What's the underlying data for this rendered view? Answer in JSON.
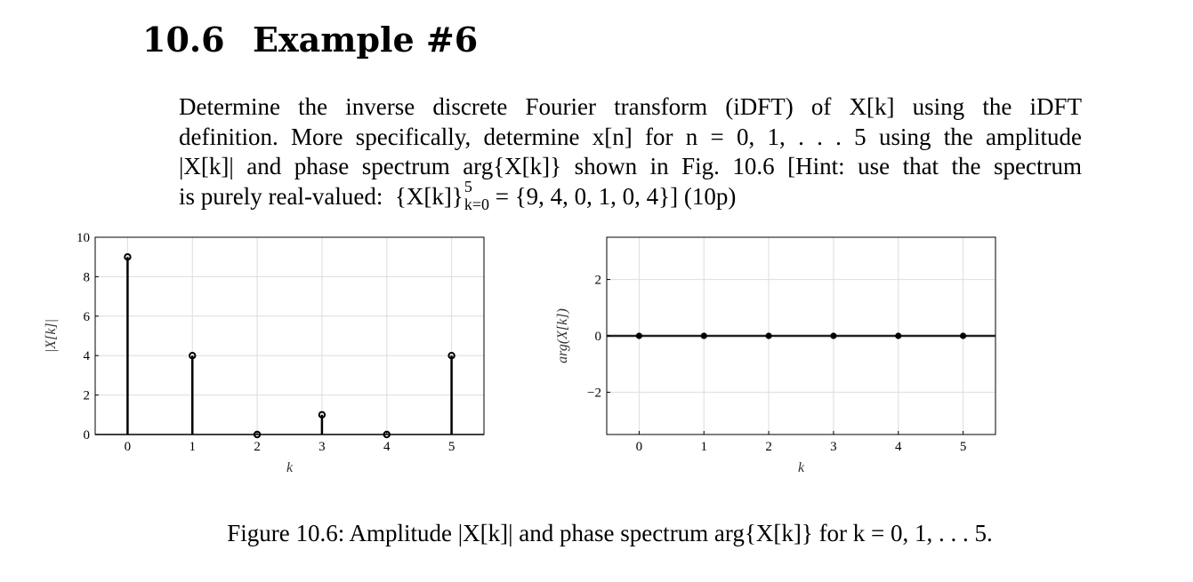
{
  "section": {
    "number": "10.6",
    "title": "Example #6"
  },
  "paragraph": {
    "line1": "Determine the inverse discrete Fourier transform (iDFT) of X[k] using the iDFT",
    "line2": "definition.  More specifically, determine x[n] for n = 0, 1, . . . 5 using the amplitude",
    "line3": "|X[k]| and phase spectrum arg{X[k]} shown in Fig. 10.6 [Hint: use that the spectrum",
    "line4_pre": "is purely real-valued:  {X[k]}",
    "line4_sup": "5",
    "line4_sub": "k=0",
    "line4_post": " = {9, 4, 0, 1, 0, 4}] (10p)"
  },
  "caption": "Figure 10.6:  Amplitude |X[k]| and phase spectrum arg{X[k]} for k = 0, 1, . . . 5.",
  "chart_data": [
    {
      "type": "stem",
      "x": [
        0,
        1,
        2,
        3,
        4,
        5
      ],
      "values": [
        9,
        4,
        0,
        1,
        0,
        4
      ],
      "xlabel": "k",
      "ylabel": "|X[k]|",
      "xlim": [
        -0.5,
        5.5
      ],
      "ylim": [
        0,
        10
      ],
      "xticks": [
        "0",
        "1",
        "2",
        "3",
        "4",
        "5"
      ],
      "yticks": [
        "0",
        "2",
        "4",
        "6",
        "8",
        "10"
      ],
      "grid": true
    },
    {
      "type": "scatter",
      "x": [
        0,
        1,
        2,
        3,
        4,
        5
      ],
      "values": [
        0,
        0,
        0,
        0,
        0,
        0
      ],
      "xlabel": "k",
      "ylabel": "arg(X[k])",
      "xlim": [
        -0.5,
        5.5
      ],
      "ylim": [
        -3.5,
        3.5
      ],
      "xticks": [
        "0",
        "1",
        "2",
        "3",
        "4",
        "5"
      ],
      "yticks": [
        "−2",
        "0",
        "2"
      ],
      "grid": true
    }
  ]
}
